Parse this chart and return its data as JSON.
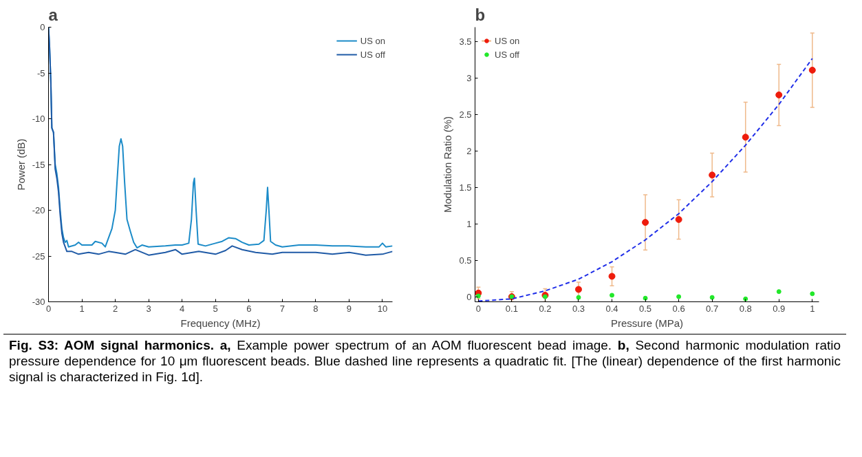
{
  "chart_data": [
    {
      "type": "line",
      "title": "a",
      "xlabel": "Frequency (MHz)",
      "ylabel": "Power (dB)",
      "xlim": [
        0,
        10.3
      ],
      "ylim": [
        -30,
        0
      ],
      "xticks": [
        0,
        1,
        2,
        3,
        4,
        5,
        6,
        7,
        8,
        9,
        10
      ],
      "yticks": [
        -30,
        -25,
        -20,
        -15,
        -10,
        -5,
        0
      ],
      "grid": false,
      "legend": "top right",
      "line_style": "solid",
      "series": [
        {
          "name": "US on",
          "color": "#1b8bc8",
          "x": [
            0,
            0.03,
            0.07,
            0.1,
            0.15,
            0.2,
            0.25,
            0.3,
            0.35,
            0.4,
            0.45,
            0.5,
            0.55,
            0.6,
            0.8,
            0.9,
            1.0,
            1.3,
            1.4,
            1.6,
            1.7,
            1.8,
            1.9,
            2.0,
            2.05,
            2.12,
            2.17,
            2.22,
            2.28,
            2.35,
            2.45,
            2.55,
            2.65,
            2.8,
            3.0,
            3.5,
            3.8,
            4.0,
            4.2,
            4.28,
            4.34,
            4.37,
            4.42,
            4.48,
            4.7,
            5.0,
            5.2,
            5.4,
            5.6,
            5.8,
            6.0,
            6.3,
            6.45,
            6.52,
            6.56,
            6.6,
            6.65,
            6.8,
            7.0,
            7.5,
            8.0,
            8.5,
            9.0,
            9.5,
            9.9,
            10.0,
            10.1,
            10.3
          ],
          "values": [
            0,
            -2,
            -6,
            -11,
            -11.5,
            -15,
            -16,
            -17.5,
            -20,
            -22,
            -23,
            -23.5,
            -23.3,
            -24,
            -23.8,
            -23.5,
            -23.8,
            -23.8,
            -23.4,
            -23.6,
            -24,
            -23,
            -22,
            -20,
            -17,
            -13,
            -12.2,
            -13,
            -17,
            -21,
            -22.3,
            -23.5,
            -24.1,
            -23.8,
            -24,
            -23.9,
            -23.8,
            -23.8,
            -23.6,
            -21,
            -17,
            -16.5,
            -20,
            -23.7,
            -23.9,
            -23.6,
            -23.4,
            -23,
            -23.1,
            -23.5,
            -23.8,
            -23.7,
            -23.3,
            -20,
            -17.5,
            -20,
            -23.4,
            -23.8,
            -24,
            -23.8,
            -23.8,
            -23.9,
            -23.9,
            -24,
            -24,
            -23.6,
            -24,
            -23.9
          ]
        },
        {
          "name": "US off",
          "color": "#1f5aa6",
          "x": [
            0,
            0.03,
            0.07,
            0.1,
            0.15,
            0.2,
            0.25,
            0.3,
            0.35,
            0.4,
            0.45,
            0.5,
            0.55,
            0.7,
            0.9,
            1.2,
            1.5,
            1.8,
            2.0,
            2.3,
            2.6,
            3.0,
            3.5,
            3.8,
            4.0,
            4.5,
            5.0,
            5.3,
            5.5,
            5.8,
            6.2,
            6.7,
            7.0,
            7.5,
            8.0,
            8.5,
            9.0,
            9.5,
            10.0,
            10.3
          ],
          "values": [
            0,
            -2,
            -6,
            -11,
            -11.5,
            -15.5,
            -16.5,
            -18,
            -20.5,
            -22.5,
            -23.5,
            -24,
            -24.5,
            -24.5,
            -24.8,
            -24.6,
            -24.8,
            -24.5,
            -24.6,
            -24.8,
            -24.3,
            -24.9,
            -24.6,
            -24.3,
            -24.8,
            -24.5,
            -24.8,
            -24.4,
            -23.9,
            -24.3,
            -24.6,
            -24.8,
            -24.6,
            -24.6,
            -24.6,
            -24.8,
            -24.6,
            -24.9,
            -24.8,
            -24.5
          ]
        }
      ],
      "annotations": [
        "Fig. S3: AOM signal harmonics. a,",
        "Example power spectrum of an AOM fluorescent bead image.",
        "b,",
        "Second harmonic modulation ratio pressure dependence for 10 μm fluorescent beads. Blue dashed line represents a quadratic fit. [The (linear) dependence of the first harmonic signal is characterized in Fig. 1d]."
      ]
    },
    {
      "type": "scatter",
      "title": "b",
      "xlabel": "Pressure (MPa)",
      "ylabel": "Modulation Ratio (%)",
      "xlim": [
        -0.01,
        1.02
      ],
      "ylim": [
        -0.07,
        3.7
      ],
      "xticks": [
        0,
        0.1,
        0.2,
        0.3,
        0.4,
        0.5,
        0.6,
        0.7,
        0.8,
        0.9,
        1
      ],
      "yticks": [
        0,
        0.5,
        1,
        1.5,
        2,
        2.5,
        3,
        3.5
      ],
      "grid": false,
      "legend": "top left",
      "x": [
        0,
        0.1,
        0.2,
        0.3,
        0.4,
        0.5,
        0.6,
        0.7,
        0.8,
        0.9,
        1
      ],
      "series": [
        {
          "name": "US on",
          "color": "#ee1c0c",
          "marker": "circle",
          "values": [
            0.05,
            0.0,
            0.02,
            0.1,
            0.28,
            1.02,
            1.06,
            1.67,
            2.19,
            2.77,
            3.11
          ],
          "errors": [
            0.08,
            0.07,
            0.09,
            0.1,
            0.13,
            0.38,
            0.27,
            0.3,
            0.48,
            0.42,
            0.51
          ]
        },
        {
          "name": "US off",
          "color": "#22e82a",
          "marker": "circle",
          "values": [
            0.01,
            0.0,
            0.0,
            -0.01,
            0.02,
            -0.02,
            0.0,
            -0.01,
            -0.03,
            0.07,
            0.04
          ]
        },
        {
          "type": "line",
          "color": "#1f2ee8",
          "line_style": "dashed",
          "x": [
            0,
            0.1,
            0.2,
            0.3,
            0.4,
            0.5,
            0.6,
            0.7,
            0.8,
            0.9,
            1.0
          ],
          "values": [
            -0.06,
            -0.03,
            0.08,
            0.24,
            0.48,
            0.78,
            1.14,
            1.58,
            2.08,
            2.64,
            3.27
          ]
        }
      ]
    }
  ]
}
